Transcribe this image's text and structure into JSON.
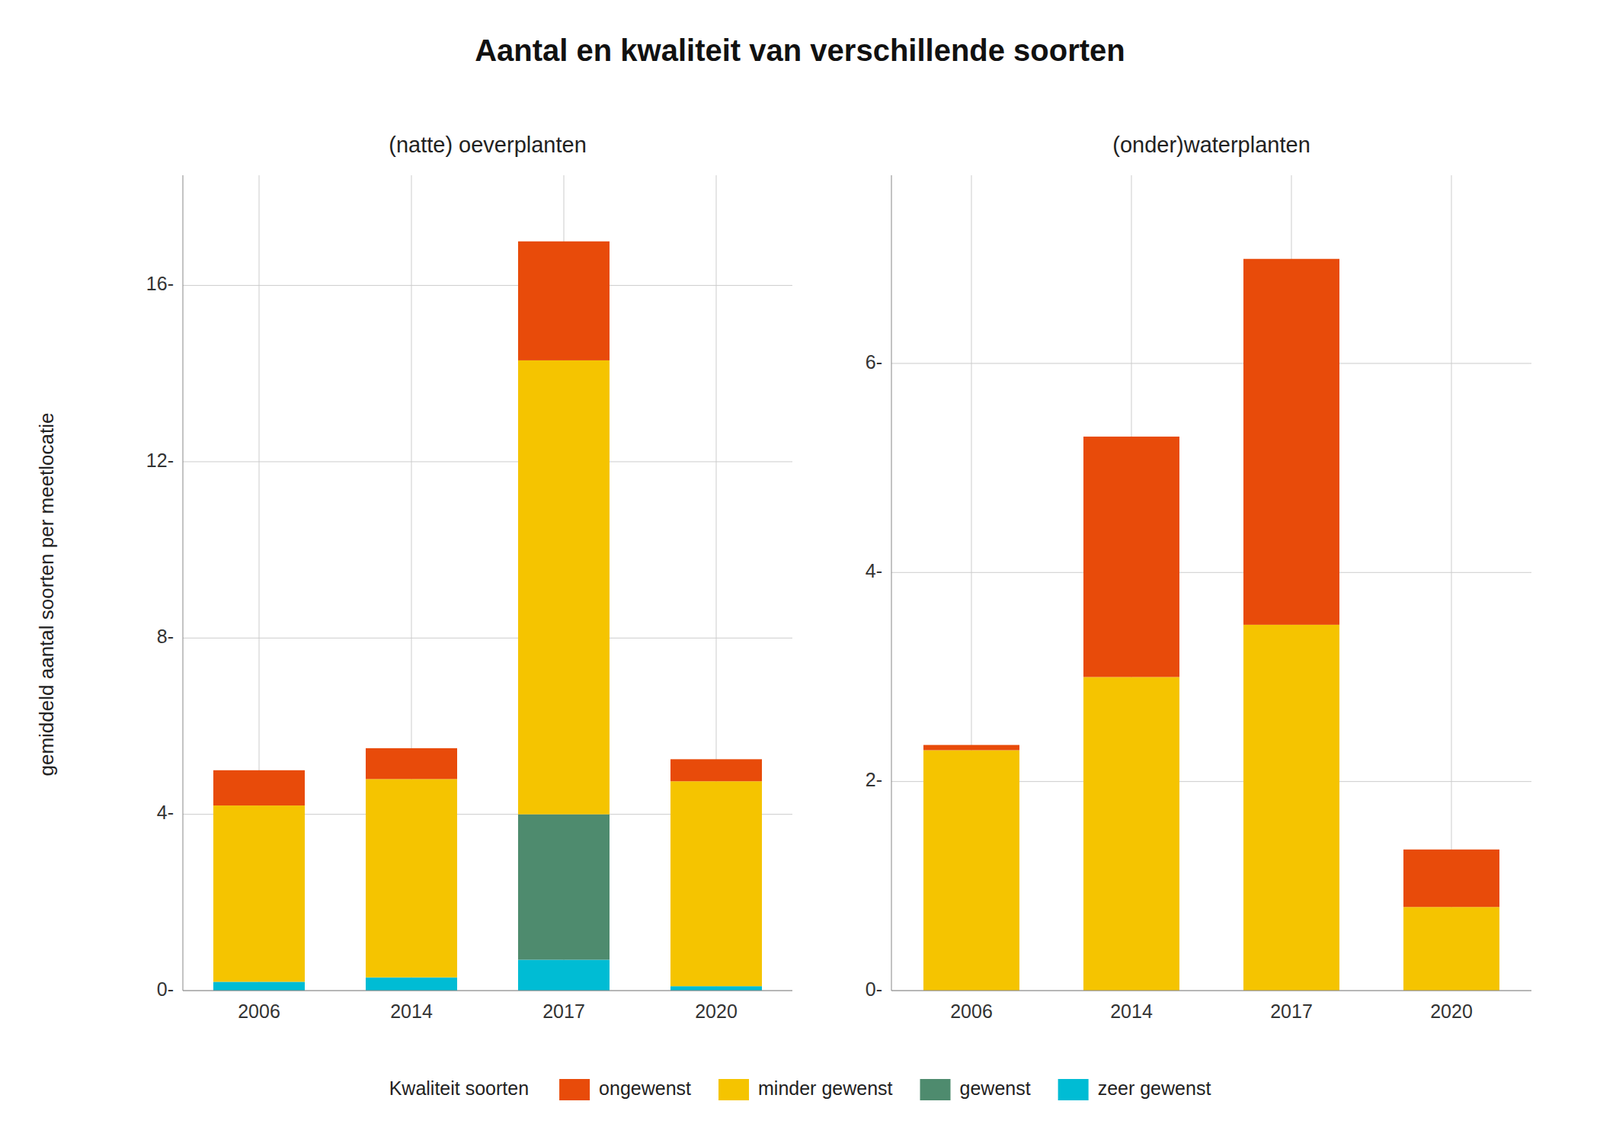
{
  "title": "Aantal en kwaliteit van verschillende soorten",
  "y_label": "gemiddeld aantal soorten per meetlocatie",
  "legend_title": "Kwaliteit soorten",
  "chart_data": [
    {
      "type": "bar",
      "stacked": true,
      "grid": true,
      "legend": "bottom",
      "subtitle": "(natte) oeverplanten",
      "categories": [
        "2006",
        "2014",
        "2017",
        "2020"
      ],
      "series": [
        {
          "name": "zeer gewenst",
          "color": "#00BCD4",
          "values": [
            0.2,
            0.3,
            0.7,
            0.1
          ]
        },
        {
          "name": "gewenst",
          "color": "#4E8B6E",
          "values": [
            0.0,
            0.0,
            3.3,
            0.0
          ]
        },
        {
          "name": "minder gewenst",
          "color": "#F5C400",
          "values": [
            4.0,
            4.5,
            10.3,
            4.65
          ]
        },
        {
          "name": "ongewenst",
          "color": "#E84B0A",
          "values": [
            0.8,
            0.7,
            2.7,
            0.5
          ]
        }
      ],
      "ylim": [
        0,
        18.5
      ],
      "yticks": [
        {
          "value": 0,
          "label": "0-"
        },
        {
          "value": 4,
          "label": "4-"
        },
        {
          "value": 8,
          "label": "8-"
        },
        {
          "value": 12,
          "label": "12-"
        },
        {
          "value": 16,
          "label": "16-"
        }
      ]
    },
    {
      "type": "bar",
      "stacked": true,
      "grid": true,
      "subtitle": "(onder)waterplanten",
      "categories": [
        "2006",
        "2014",
        "2017",
        "2020"
      ],
      "series": [
        {
          "name": "zeer gewenst",
          "color": "#00BCD4",
          "values": [
            0.0,
            0.0,
            0.0,
            0.0
          ]
        },
        {
          "name": "gewenst",
          "color": "#4E8B6E",
          "values": [
            0.0,
            0.0,
            0.0,
            0.0
          ]
        },
        {
          "name": "minder gewenst",
          "color": "#F5C400",
          "values": [
            2.3,
            3.0,
            3.5,
            0.8
          ]
        },
        {
          "name": "ongewenst",
          "color": "#E84B0A",
          "values": [
            0.05,
            2.3,
            3.5,
            0.55
          ]
        }
      ],
      "ylim": [
        0,
        7.8
      ],
      "yticks": [
        {
          "value": 0,
          "label": "0-"
        },
        {
          "value": 2,
          "label": "2-"
        },
        {
          "value": 4,
          "label": "4-"
        },
        {
          "value": 6,
          "label": "6-"
        }
      ]
    }
  ]
}
